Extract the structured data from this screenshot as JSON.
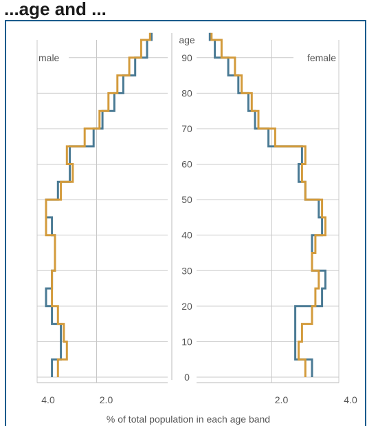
{
  "title": "...age and ...",
  "chart_data": {
    "type": "line",
    "chart_kind": "population pyramid (step lines)",
    "xlabel": "% of total population in each age band",
    "ylabel": "age",
    "left_label": "male",
    "right_label": "female",
    "x_tick_labels": [
      "4.0",
      "2.0",
      "2.0",
      "4.0"
    ],
    "x_ticks_left": [
      4.0,
      2.0
    ],
    "x_ticks_right": [
      2.0,
      4.0
    ],
    "xlim": [
      0,
      4.0
    ],
    "y_ticks": [
      0,
      10,
      20,
      30,
      40,
      50,
      60,
      70,
      80,
      90
    ],
    "ylim": [
      0,
      95
    ],
    "grid": true,
    "age_band_starts": [
      0,
      5,
      10,
      15,
      20,
      25,
      30,
      35,
      40,
      45,
      50,
      55,
      60,
      65,
      70,
      75,
      80,
      85,
      90,
      95
    ],
    "series": [
      {
        "side": "male",
        "color": "#4a7a94",
        "values": [
          3.5,
          3.2,
          3.2,
          3.5,
          3.7,
          3.5,
          3.4,
          3.4,
          3.5,
          3.7,
          3.3,
          2.9,
          2.9,
          2.1,
          1.8,
          1.4,
          1.1,
          0.7,
          0.3,
          0.15
        ]
      },
      {
        "side": "male",
        "color": "#d39b3c",
        "values": [
          3.3,
          3.0,
          3.1,
          3.3,
          3.5,
          3.5,
          3.4,
          3.4,
          3.7,
          3.7,
          3.2,
          2.8,
          3.0,
          2.4,
          1.9,
          1.6,
          1.3,
          0.9,
          0.5,
          0.2
        ]
      },
      {
        "side": "female",
        "color": "#4a7a94",
        "values": [
          3.2,
          2.7,
          2.7,
          2.7,
          3.5,
          3.6,
          3.2,
          3.2,
          3.5,
          3.4,
          3.0,
          2.8,
          2.9,
          1.9,
          1.5,
          1.3,
          1.0,
          0.7,
          0.3,
          0.15
        ]
      },
      {
        "side": "female",
        "color": "#d39b3c",
        "values": [
          3.0,
          2.8,
          2.9,
          3.2,
          3.3,
          3.4,
          3.2,
          3.3,
          3.6,
          3.5,
          3.0,
          2.9,
          3.0,
          2.1,
          1.6,
          1.4,
          1.1,
          0.9,
          0.5,
          0.2
        ]
      }
    ]
  }
}
